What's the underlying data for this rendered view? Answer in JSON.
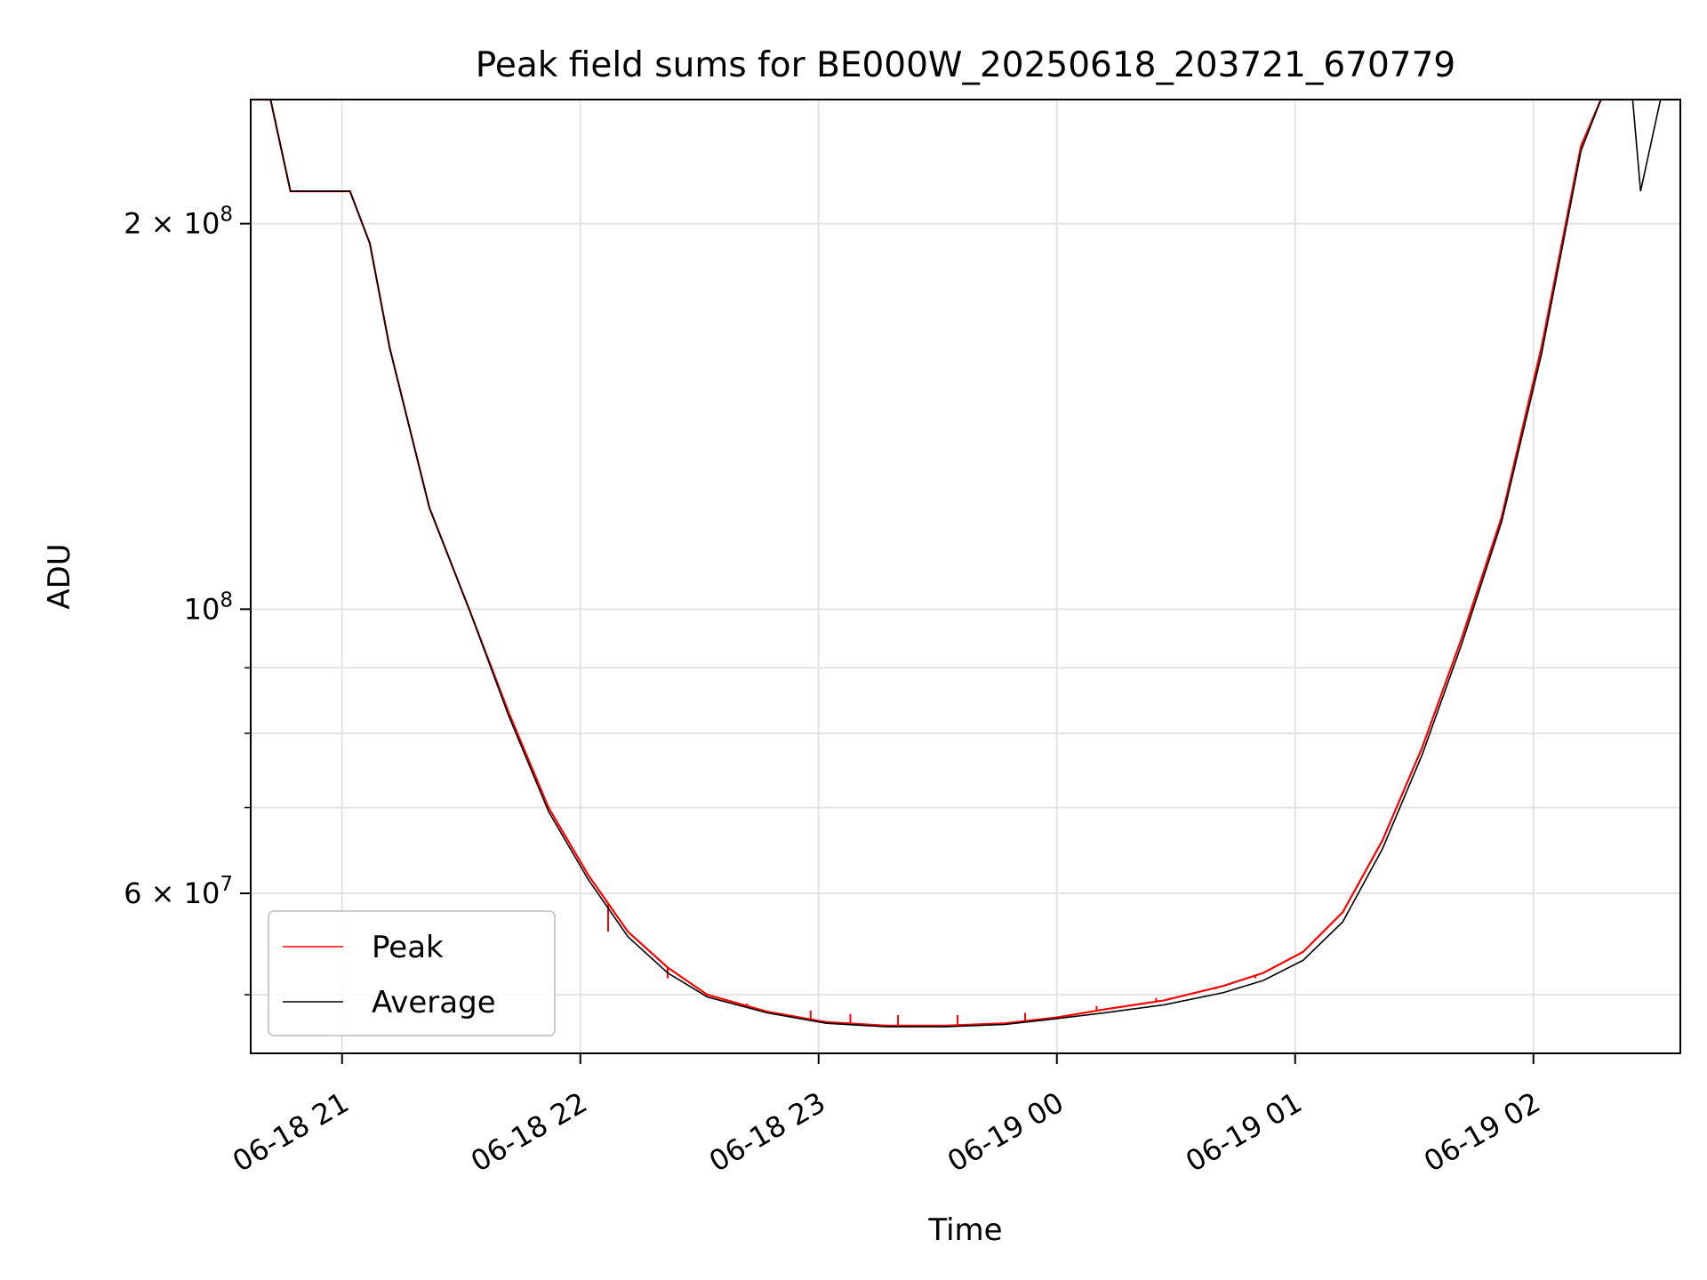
{
  "chart_data": {
    "type": "line",
    "title": "Peak field sums for BE000W_20250618_203721_670779",
    "xlabel": "Time",
    "ylabel": "ADU",
    "y_scale": "log",
    "ylim": [
      45000000,
      250000000
    ],
    "xlim": [
      "2025-06-18 20:37",
      "2025-06-19 02:37"
    ],
    "grid": true,
    "legend_position": "lower-left",
    "x_tick_labels": [
      "06-18 21",
      "06-18 22",
      "06-18 23",
      "06-19 00",
      "06-19 01",
      "06-19 02"
    ],
    "x_ticks": [
      "2025-06-18 21:00",
      "2025-06-18 22:00",
      "2025-06-18 23:00",
      "2025-06-19 00:00",
      "2025-06-19 01:00",
      "2025-06-19 02:00"
    ],
    "y_tick_labels": [
      {
        "value": 200000000,
        "base": "2 × 10",
        "exp": "8"
      },
      {
        "value": 100000000,
        "base": "10",
        "exp": "8"
      },
      {
        "value": 60000000,
        "base": "6 × 10",
        "exp": "7"
      }
    ],
    "y_minor_ticks": [
      50000000,
      70000000,
      80000000,
      90000000
    ],
    "series": [
      {
        "name": "Peak",
        "color": "#ff0000",
        "x": [
          "2025-06-18 20:37",
          "2025-06-18 20:42",
          "2025-06-18 20:47",
          "2025-06-18 20:57",
          "2025-06-18 21:02",
          "2025-06-18 21:07",
          "2025-06-18 21:12",
          "2025-06-18 21:22",
          "2025-06-18 21:32",
          "2025-06-18 21:42",
          "2025-06-18 21:52",
          "2025-06-18 22:02",
          "2025-06-18 22:12",
          "2025-06-18 22:22",
          "2025-06-18 22:32",
          "2025-06-18 22:47",
          "2025-06-18 23:02",
          "2025-06-18 23:17",
          "2025-06-18 23:32",
          "2025-06-18 23:47",
          "2025-06-19 00:00",
          "2025-06-19 00:12",
          "2025-06-19 00:27",
          "2025-06-19 00:42",
          "2025-06-19 00:52",
          "2025-06-19 01:02",
          "2025-06-19 01:12",
          "2025-06-19 01:22",
          "2025-06-19 01:32",
          "2025-06-19 01:42",
          "2025-06-19 01:52",
          "2025-06-19 02:02",
          "2025-06-19 02:12",
          "2025-06-19 02:17",
          "2025-06-19 02:22",
          "2025-06-19 02:27",
          "2025-06-19 02:32",
          "2025-06-19 02:37"
        ],
        "y": [
          250000000,
          250000000,
          212000000,
          212000000,
          212000000,
          193000000,
          160000000,
          120000000,
          100000000,
          83000000,
          70000000,
          62000000,
          56000000,
          52500000,
          50000000,
          48500000,
          47600000,
          47300000,
          47300000,
          47500000,
          48000000,
          48700000,
          49500000,
          50800000,
          52000000,
          54000000,
          58000000,
          66000000,
          78000000,
          95000000,
          118000000,
          160000000,
          230000000,
          250000000,
          250000000,
          250000000,
          250000000,
          250000000
        ],
        "spikes": [
          {
            "x": "2025-06-18 22:07",
            "y": 56000000
          },
          {
            "x": "2025-06-18 22:22",
            "y": 51500000
          },
          {
            "x": "2025-06-18 22:42",
            "y": 49200000
          },
          {
            "x": "2025-06-18 22:58",
            "y": 48600000
          },
          {
            "x": "2025-06-18 23:08",
            "y": 48300000
          },
          {
            "x": "2025-06-18 23:20",
            "y": 48200000
          },
          {
            "x": "2025-06-18 23:35",
            "y": 48200000
          },
          {
            "x": "2025-06-18 23:52",
            "y": 48400000
          },
          {
            "x": "2025-06-19 00:10",
            "y": 49000000
          },
          {
            "x": "2025-06-19 00:25",
            "y": 49700000
          },
          {
            "x": "2025-06-19 00:40",
            "y": 50500000
          },
          {
            "x": "2025-06-19 00:50",
            "y": 51500000
          }
        ]
      },
      {
        "name": "Average",
        "color": "#000000",
        "x": [
          "2025-06-18 20:37",
          "2025-06-18 20:42",
          "2025-06-18 20:47",
          "2025-06-18 20:57",
          "2025-06-18 21:02",
          "2025-06-18 21:07",
          "2025-06-18 21:12",
          "2025-06-18 21:22",
          "2025-06-18 21:32",
          "2025-06-18 21:42",
          "2025-06-18 21:52",
          "2025-06-18 22:02",
          "2025-06-18 22:12",
          "2025-06-18 22:22",
          "2025-06-18 22:32",
          "2025-06-18 22:47",
          "2025-06-18 23:02",
          "2025-06-18 23:17",
          "2025-06-18 23:32",
          "2025-06-18 23:47",
          "2025-06-19 00:00",
          "2025-06-19 00:12",
          "2025-06-19 00:27",
          "2025-06-19 00:42",
          "2025-06-19 00:52",
          "2025-06-19 01:02",
          "2025-06-19 01:12",
          "2025-06-19 01:22",
          "2025-06-19 01:32",
          "2025-06-19 01:42",
          "2025-06-19 01:52",
          "2025-06-19 02:02",
          "2025-06-19 02:12",
          "2025-06-19 02:17",
          "2025-06-19 02:22",
          "2025-06-19 02:25",
          "2025-06-19 02:27",
          "2025-06-19 02:32",
          "2025-06-19 02:37"
        ],
        "y": [
          250000000,
          250000000,
          212000000,
          212000000,
          212000000,
          193000000,
          160000000,
          120000000,
          100000000,
          82500000,
          69500000,
          61500000,
          55500000,
          52000000,
          49800000,
          48400000,
          47500000,
          47200000,
          47200000,
          47400000,
          47900000,
          48400000,
          49100000,
          50200000,
          51300000,
          53200000,
          57000000,
          65000000,
          77000000,
          94000000,
          117000000,
          158000000,
          228000000,
          250000000,
          250000000,
          250000000,
          212000000,
          250000000,
          250000000
        ]
      }
    ]
  }
}
